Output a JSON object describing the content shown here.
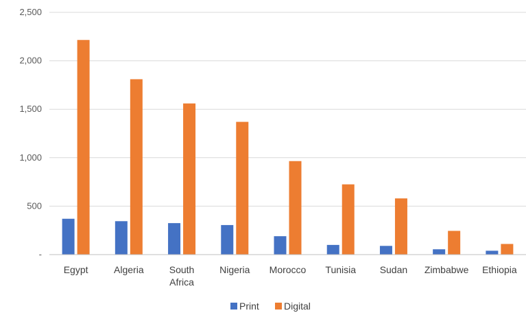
{
  "chart_data": {
    "type": "bar",
    "categories": [
      [
        "Egypt"
      ],
      [
        "Algeria"
      ],
      [
        "South",
        "Africa"
      ],
      [
        "Nigeria"
      ],
      [
        "Morocco"
      ],
      [
        "Tunisia"
      ],
      [
        "Sudan"
      ],
      [
        "Zimbabwe"
      ],
      [
        "Ethiopia"
      ]
    ],
    "series": [
      {
        "name": "Print",
        "color": "#4472C4",
        "values": [
          370,
          345,
          325,
          305,
          190,
          100,
          90,
          55,
          40
        ]
      },
      {
        "name": "Digital",
        "color": "#ED7D31",
        "values": [
          2215,
          1810,
          1560,
          1370,
          965,
          725,
          580,
          245,
          110
        ]
      }
    ],
    "yticks": [
      "-",
      "500",
      "1,000",
      "1,500",
      "2,000",
      "2,500"
    ],
    "ylim": [
      0,
      2500
    ],
    "title": "",
    "xlabel": "",
    "ylabel": "",
    "grid": true,
    "legend": "bottom-center",
    "grid_color": "#d9d9d9",
    "axis_color": "#bfbfbf"
  }
}
